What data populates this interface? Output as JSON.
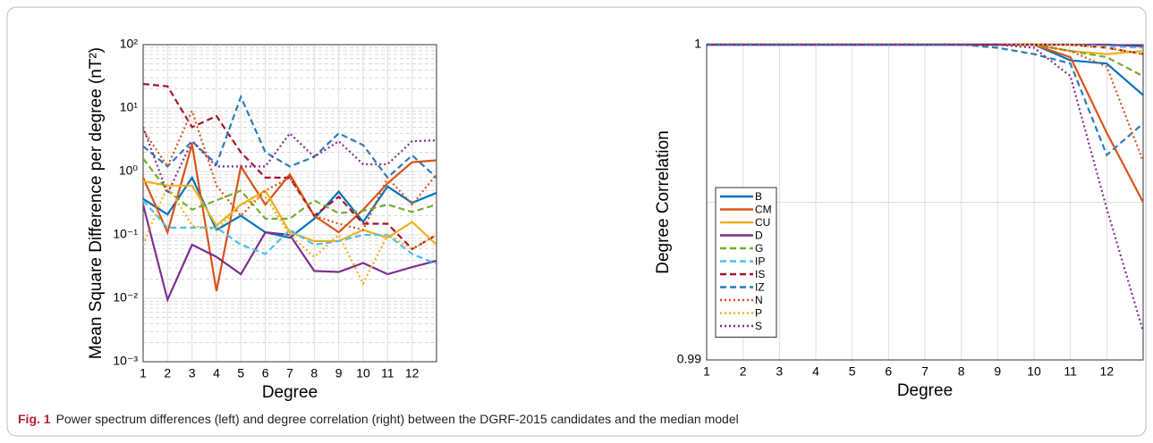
{
  "chart_data": [
    {
      "type": "line",
      "ylabel": "Mean Square Difference per degree (nT²)",
      "xlabel": "Degree",
      "x": [
        1,
        2,
        3,
        4,
        5,
        6,
        7,
        8,
        9,
        10,
        11,
        12,
        13
      ],
      "xlim": [
        1,
        13
      ],
      "xticks": [
        1,
        2,
        3,
        4,
        5,
        6,
        7,
        8,
        9,
        10,
        11,
        12
      ],
      "ylim": [
        0.001,
        100
      ],
      "log_y": true,
      "grid": true,
      "minor_grid": true,
      "yticks": [
        {
          "value": 0.001,
          "label": "10⁻³"
        },
        {
          "value": 0.01,
          "label": "10⁻²"
        },
        {
          "value": 0.1,
          "label": "10⁻¹"
        },
        {
          "value": 1,
          "label": "10⁰"
        },
        {
          "value": 10,
          "label": "10¹"
        },
        {
          "value": 100,
          "label": "10²"
        }
      ],
      "series": [
        {
          "name": "B",
          "color": "#0072bd",
          "dash": "solid",
          "values": [
            0.37,
            0.21,
            0.8,
            0.12,
            0.2,
            0.11,
            0.09,
            0.18,
            0.48,
            0.16,
            0.58,
            0.32,
            0.46
          ]
        },
        {
          "name": "CM",
          "color": "#d95319",
          "dash": "solid",
          "values": [
            0.8,
            0.11,
            2.7,
            0.013,
            1.2,
            0.3,
            0.9,
            0.2,
            0.11,
            0.25,
            0.65,
            1.4,
            1.5
          ]
        },
        {
          "name": "CU",
          "color": "#edb120",
          "dash": "solid",
          "values": [
            0.7,
            0.6,
            0.6,
            0.14,
            0.3,
            0.5,
            0.11,
            0.08,
            0.08,
            0.12,
            0.09,
            0.16,
            0.07
          ]
        },
        {
          "name": "D",
          "color": "#7e2f8e",
          "dash": "solid",
          "values": [
            0.3,
            0.0095,
            0.07,
            0.045,
            0.024,
            0.11,
            0.1,
            0.027,
            0.026,
            0.036,
            0.024,
            0.031,
            0.039
          ]
        },
        {
          "name": "G",
          "color": "#77ac30",
          "dash": "dashed",
          "values": [
            1.6,
            0.5,
            0.25,
            0.35,
            0.5,
            0.18,
            0.18,
            0.35,
            0.22,
            0.24,
            0.3,
            0.23,
            0.3
          ]
        },
        {
          "name": "IP",
          "color": "#4dbeee",
          "dash": "dashed",
          "values": [
            0.35,
            0.13,
            0.13,
            0.13,
            0.07,
            0.05,
            0.12,
            0.07,
            0.08,
            0.1,
            0.1,
            0.05,
            0.035
          ]
        },
        {
          "name": "IS",
          "color": "#a2142f",
          "dash": "dashed",
          "values": [
            24,
            22,
            5,
            7.5,
            2,
            0.8,
            0.8,
            0.2,
            0.4,
            0.15,
            0.15,
            0.06,
            0.1
          ]
        },
        {
          "name": "IZ",
          "color": "#2f7ab8",
          "dash": "dashed",
          "values": [
            2.5,
            1.2,
            3,
            1.3,
            15,
            2,
            1.2,
            1.7,
            4,
            2.6,
            0.8,
            1.8,
            0.8
          ]
        },
        {
          "name": "N",
          "color": "#d95319",
          "dash": "dotted",
          "values": [
            4.5,
            1.2,
            9,
            0.6,
            0.2,
            0.5,
            0.8,
            0.2,
            0.15,
            0.12,
            0.8,
            0.3,
            0.9
          ]
        },
        {
          "name": "P",
          "color": "#edb120",
          "dash": "dotted",
          "values": [
            0.07,
            0.6,
            0.14,
            0.12,
            0.3,
            0.4,
            0.1,
            0.045,
            0.1,
            0.017,
            0.1,
            0.06,
            0.1
          ]
        },
        {
          "name": "S",
          "color": "#7e2f8e",
          "dash": "dotted",
          "values": [
            5,
            0.45,
            3,
            1.2,
            1.2,
            1.2,
            4,
            1.7,
            3,
            1.3,
            1.3,
            3,
            3.1
          ]
        }
      ]
    },
    {
      "type": "line",
      "ylabel": "Degree Correlation",
      "xlabel": "Degree",
      "x": [
        1,
        2,
        3,
        4,
        5,
        6,
        7,
        8,
        9,
        10,
        11,
        12,
        13
      ],
      "xlim": [
        1,
        13
      ],
      "xticks": [
        1,
        2,
        3,
        4,
        5,
        6,
        7,
        8,
        9,
        10,
        11,
        12
      ],
      "ylim": [
        0.99,
        1
      ],
      "yticks": [
        0.99,
        1
      ],
      "ygrid": [
        0.995
      ],
      "grid": true,
      "legend": "left",
      "series": [
        {
          "name": "B",
          "color": "#0072bd",
          "dash": "solid",
          "values": [
            1,
            1,
            1,
            1,
            1,
            1,
            1,
            1,
            1,
            1,
            0.9995,
            0.9994,
            0.9984
          ]
        },
        {
          "name": "CM",
          "color": "#d95319",
          "dash": "solid",
          "values": [
            1,
            1,
            1,
            1,
            1,
            1,
            1,
            1,
            1,
            1,
            0.9996,
            0.9972,
            0.995
          ]
        },
        {
          "name": "CU",
          "color": "#edb120",
          "dash": "solid",
          "values": [
            1,
            1,
            1,
            1,
            1,
            1,
            1,
            1,
            1,
            1,
            0.9998,
            0.9997,
            0.9998
          ]
        },
        {
          "name": "D",
          "color": "#7e2f8e",
          "dash": "solid",
          "values": [
            1,
            1,
            1,
            1,
            1,
            1,
            1,
            1,
            1,
            1,
            1,
            1,
            0.99995
          ]
        },
        {
          "name": "G",
          "color": "#77ac30",
          "dash": "dashed",
          "values": [
            1,
            1,
            1,
            1,
            1,
            1,
            1,
            1,
            1,
            1,
            0.9998,
            0.9996,
            0.999
          ]
        },
        {
          "name": "IP",
          "color": "#4dbeee",
          "dash": "dashed",
          "values": [
            1,
            1,
            1,
            1,
            1,
            1,
            1,
            1,
            1,
            1,
            1,
            0.99995,
            0.9999
          ]
        },
        {
          "name": "IS",
          "color": "#a2142f",
          "dash": "dashed",
          "values": [
            1,
            1,
            1,
            1,
            1,
            1,
            1,
            1,
            1,
            1,
            1,
            0.9999,
            0.9997
          ]
        },
        {
          "name": "IZ",
          "color": "#2f7ab8",
          "dash": "dashed",
          "values": [
            1,
            1,
            1,
            1,
            1,
            1,
            1,
            1,
            0.9999,
            0.9997,
            0.9994,
            0.9965,
            0.9975
          ]
        },
        {
          "name": "N",
          "color": "#d95319",
          "dash": "dotted",
          "values": [
            1,
            1,
            1,
            1,
            1,
            1,
            1,
            1,
            1,
            1,
            0.9998,
            0.9993,
            0.9963
          ]
        },
        {
          "name": "P",
          "color": "#edb120",
          "dash": "dotted",
          "values": [
            1,
            1,
            1,
            1,
            1,
            1,
            1,
            1,
            1,
            1,
            1,
            0.9999,
            0.9997
          ]
        },
        {
          "name": "S",
          "color": "#7e2f8e",
          "dash": "dotted",
          "values": [
            1,
            1,
            1,
            1,
            1,
            1,
            1,
            1,
            1,
            0.9999,
            0.999,
            0.9948,
            0.9909
          ]
        }
      ]
    }
  ],
  "caption": {
    "label": "Fig. 1",
    "text": "Power spectrum differences (left) and degree correlation (right) between the DGRF-2015 candidates and the median model"
  }
}
